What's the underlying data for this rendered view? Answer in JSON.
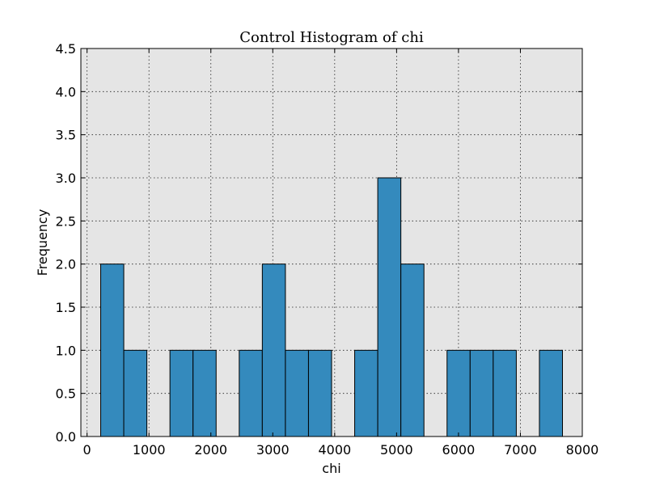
{
  "chart_data": {
    "type": "bar",
    "title": "Control Histogram of chi",
    "xlabel": "chi",
    "ylabel": "Frequency",
    "xlim": [
      -100,
      8000
    ],
    "ylim": [
      0,
      4.5
    ],
    "x_ticks": [
      0,
      1000,
      2000,
      3000,
      4000,
      5000,
      6000,
      7000,
      8000
    ],
    "y_ticks": [
      0.0,
      0.5,
      1.0,
      1.5,
      2.0,
      2.5,
      3.0,
      3.5,
      4.0,
      4.5
    ],
    "grid": true,
    "bar_color": "#348ABD",
    "background_color": "#E5E5E5",
    "bins": [
      {
        "x0": 220,
        "x1": 593,
        "count": 2
      },
      {
        "x0": 593,
        "x1": 966,
        "count": 1
      },
      {
        "x0": 966,
        "x1": 1339,
        "count": 0
      },
      {
        "x0": 1339,
        "x1": 1712,
        "count": 1
      },
      {
        "x0": 1712,
        "x1": 2085,
        "count": 1
      },
      {
        "x0": 2085,
        "x1": 2458,
        "count": 0
      },
      {
        "x0": 2458,
        "x1": 2831,
        "count": 1
      },
      {
        "x0": 2831,
        "x1": 3204,
        "count": 2
      },
      {
        "x0": 3204,
        "x1": 3577,
        "count": 1
      },
      {
        "x0": 3577,
        "x1": 3950,
        "count": 1
      },
      {
        "x0": 3950,
        "x1": 4323,
        "count": 0
      },
      {
        "x0": 4323,
        "x1": 4696,
        "count": 1
      },
      {
        "x0": 4696,
        "x1": 5069,
        "count": 3
      },
      {
        "x0": 5069,
        "x1": 5442,
        "count": 2
      },
      {
        "x0": 5442,
        "x1": 5815,
        "count": 0
      },
      {
        "x0": 5815,
        "x1": 6188,
        "count": 1
      },
      {
        "x0": 6188,
        "x1": 6561,
        "count": 1
      },
      {
        "x0": 6561,
        "x1": 6934,
        "count": 1
      },
      {
        "x0": 6934,
        "x1": 7307,
        "count": 0
      },
      {
        "x0": 7307,
        "x1": 7680,
        "count": 1
      }
    ]
  }
}
